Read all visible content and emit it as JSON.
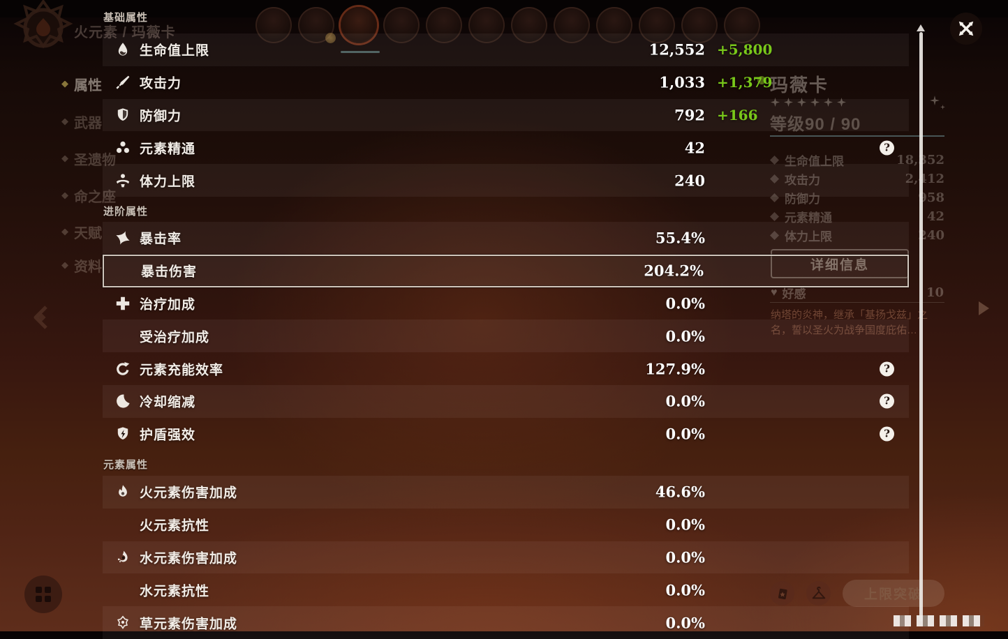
{
  "overlay": {
    "help_glyph": "?",
    "sections": [
      {
        "title": "基础属性",
        "rows": [
          {
            "icon": "hp-droplet",
            "label": "生命值上限",
            "value": "12,552",
            "bonus": "+5,800",
            "shade": "light"
          },
          {
            "icon": "sword",
            "label": "攻击力",
            "value": "1,033",
            "bonus": "+1,379",
            "shade": "dark"
          },
          {
            "icon": "shield",
            "label": "防御力",
            "value": "792",
            "bonus": "+166",
            "shade": "light"
          },
          {
            "icon": "elemental-mastery",
            "label": "元素精通",
            "value": "42",
            "help": true,
            "shade": "dark"
          },
          {
            "icon": "stamina",
            "label": "体力上限",
            "value": "240",
            "shade": "light"
          }
        ]
      },
      {
        "title": "进阶属性",
        "rows": [
          {
            "icon": "crit-rate",
            "label": "暴击率",
            "value": "55.4%",
            "shade": "light"
          },
          {
            "icon": null,
            "label": "暴击伤害",
            "value": "204.2%",
            "selected": true,
            "shade": "selected"
          },
          {
            "icon": "healing-plus",
            "label": "治疗加成",
            "value": "0.0%",
            "shade": "dark"
          },
          {
            "icon": null,
            "label": "受治疗加成",
            "value": "0.0%",
            "shade": "light"
          },
          {
            "icon": "energy-recharge",
            "label": "元素充能效率",
            "value": "127.9%",
            "help": true,
            "shade": "dark"
          },
          {
            "icon": "cooldown-moon",
            "label": "冷却缩减",
            "value": "0.0%",
            "help": true,
            "shade": "light"
          },
          {
            "icon": "shield-strength",
            "label": "护盾强效",
            "value": "0.0%",
            "help": true,
            "shade": "dark"
          }
        ]
      },
      {
        "title": "元素属性",
        "rows": [
          {
            "icon": "pyro",
            "label": "火元素伤害加成",
            "value": "46.6%",
            "shade": "light"
          },
          {
            "icon": null,
            "label": "火元素抗性",
            "value": "0.0%",
            "shade": "dark"
          },
          {
            "icon": "hydro",
            "label": "水元素伤害加成",
            "value": "0.0%",
            "shade": "light"
          },
          {
            "icon": null,
            "label": "水元素抗性",
            "value": "0.0%",
            "shade": "dark"
          },
          {
            "icon": "dendro",
            "label": "草元素伤害加成",
            "value": "0.0%",
            "shade": "light"
          }
        ]
      }
    ]
  },
  "background": {
    "page_title": "火元素 / 玛薇卡",
    "nav_items": [
      {
        "label": "属性",
        "active": true
      },
      {
        "label": "武器",
        "active": false
      },
      {
        "label": "圣遗物",
        "active": false
      },
      {
        "label": "命之座",
        "active": false
      },
      {
        "label": "天赋",
        "active": false
      },
      {
        "label": "资料",
        "active": false
      }
    ],
    "party_avatars": [
      {
        "selected": false,
        "badge": false
      },
      {
        "selected": false,
        "badge": true
      },
      {
        "selected": true,
        "badge": false
      },
      {
        "selected": false,
        "badge": false
      },
      {
        "selected": false,
        "badge": false
      },
      {
        "selected": false,
        "badge": false
      },
      {
        "selected": false,
        "badge": false
      },
      {
        "selected": false,
        "badge": false
      },
      {
        "selected": false,
        "badge": false
      },
      {
        "selected": false,
        "badge": false
      },
      {
        "selected": false,
        "badge": false
      },
      {
        "selected": false,
        "badge": false
      }
    ],
    "character_card": {
      "name": "玛薇卡",
      "stars": 6,
      "level": "等级90 / 90",
      "stats": [
        {
          "label": "生命值上限",
          "value": "18,352"
        },
        {
          "label": "攻击力",
          "value": "2,412"
        },
        {
          "label": "防御力",
          "value": "958"
        },
        {
          "label": "元素精通",
          "value": "42"
        },
        {
          "label": "体力上限",
          "value": "240"
        }
      ],
      "details_label": "详细信息",
      "friendship_glyph": "♥",
      "friendship_label": "好感",
      "friendship_value": "10",
      "description_line1": "纳塔的炎神，继承「基扬戈兹」之",
      "description_line2": "名，誓以圣火为战争国度庇佑…"
    },
    "ascend_button_label": "上限突破"
  },
  "colors": {
    "bonus_green": "#79c81a",
    "selected_border": "#dbd2c8",
    "divider_teal": "#80b0b6"
  }
}
